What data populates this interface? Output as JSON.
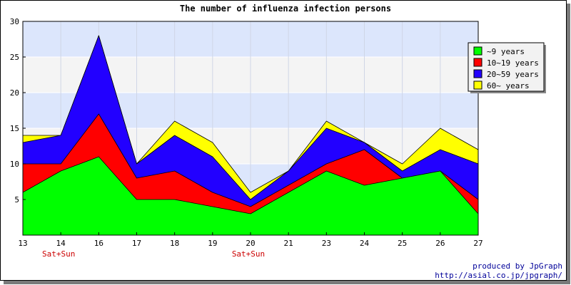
{
  "chart_data": {
    "type": "area",
    "stacked": true,
    "title": "The number of influenza infection persons",
    "x": [
      "13",
      "14",
      "16",
      "17",
      "18",
      "19",
      "20",
      "21",
      "23",
      "24",
      "25",
      "26",
      "27"
    ],
    "x_annotations": [
      {
        "x": "14",
        "text": "Sat+Sun"
      },
      {
        "x": "20",
        "text": "Sat+Sun"
      }
    ],
    "ylim": [
      0,
      30
    ],
    "yticks": [
      5,
      10,
      15,
      20,
      25,
      30
    ],
    "grid": true,
    "legend_position": "top-right",
    "series": [
      {
        "name": "~9 years",
        "color": "#00ff00",
        "values": [
          6,
          9,
          11,
          5,
          5,
          4,
          3,
          6,
          9,
          7,
          8,
          9,
          3
        ]
      },
      {
        "name": "10~19 years",
        "color": "#ff0000",
        "values": [
          4,
          1,
          6,
          3,
          4,
          2,
          1,
          1,
          1,
          5,
          0,
          0,
          2
        ]
      },
      {
        "name": "20~59 years",
        "color": "#2200ff",
        "values": [
          3,
          4,
          11,
          2,
          5,
          5,
          1,
          2,
          5,
          1,
          1,
          3,
          5
        ]
      },
      {
        "name": "60~ years",
        "color": "#ffff00",
        "values": [
          1,
          0,
          0,
          0,
          2,
          2,
          1,
          0,
          1,
          0,
          1,
          3,
          2
        ]
      }
    ]
  },
  "credits": {
    "line1": "produced by JpGraph",
    "line2": "http://asial.co.jp/jpgraph/"
  },
  "colors": {
    "band_a": "#dce6fc",
    "band_b": "#f4f4f4",
    "credit_text": "#000099",
    "annotation_text": "#cc0000"
  }
}
